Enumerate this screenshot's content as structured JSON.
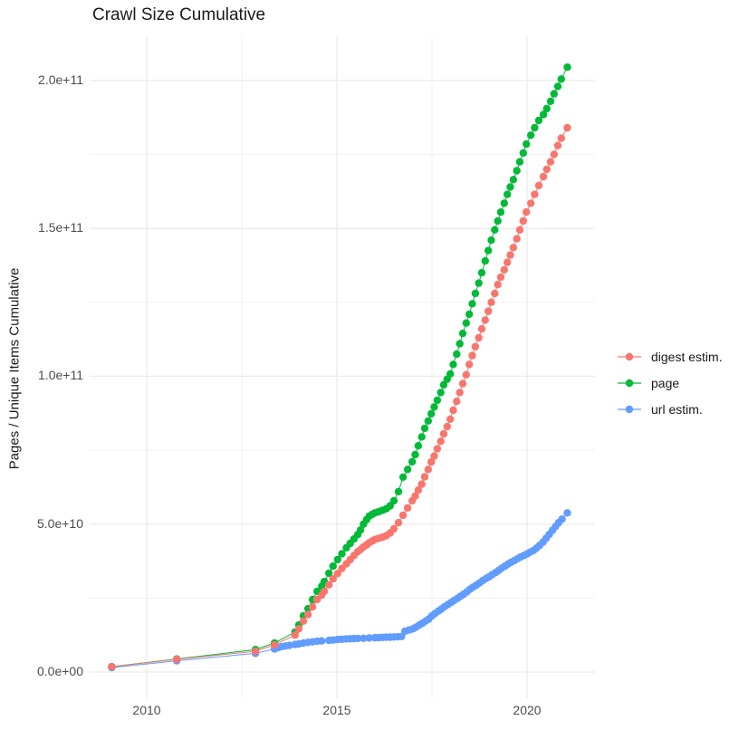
{
  "chart_data": {
    "type": "line",
    "marker": "point",
    "title": "Crawl Size Cumulative",
    "ylabel": "Pages / Unique Items Cumulative",
    "xlabel": "",
    "values_unit": "1e9 (billions of items)",
    "background": "#ffffff",
    "gridline_color": "#EBEBEB",
    "tick_label_color": "#4d4d4d",
    "axes": {
      "x_ticks": {
        "values": [
          2010,
          2015,
          2020
        ],
        "labels": [
          "2010",
          "2015",
          "2020"
        ]
      },
      "x_minor": [
        2012.5,
        2017.5
      ],
      "y_ticks": {
        "values": [
          0,
          50,
          100,
          150,
          200
        ],
        "labels": [
          "0.0e+00",
          "5.0e+10",
          "1.0e+11",
          "1.5e+11",
          "2.0e+11"
        ]
      },
      "y_minor": [
        25,
        75,
        125,
        175
      ],
      "xlim": [
        2008.5,
        2021.8
      ],
      "ylim_e9": [
        -10,
        215
      ],
      "grid": "major and minor gridlines, no axis lines, white panel"
    },
    "legend": {
      "position": "right",
      "entries": [
        "digest estim.",
        "page",
        "url estim."
      ]
    },
    "series": [
      {
        "name": "digest estim.",
        "color": "#F8766D",
        "points": [
          [
            2009.08,
            1.8
          ],
          [
            2010.79,
            4.3
          ],
          [
            2012.86,
            7.0
          ],
          [
            2013.36,
            9.2
          ],
          [
            2013.9,
            12.5
          ],
          [
            2014.0,
            14.6
          ],
          [
            2014.12,
            17.2
          ],
          [
            2014.24,
            19.4
          ],
          [
            2014.36,
            22.0
          ],
          [
            2014.48,
            24.5
          ],
          [
            2014.6,
            26.0
          ],
          [
            2014.67,
            27.3
          ],
          [
            2014.79,
            29.5
          ],
          [
            2014.9,
            31.5
          ],
          [
            2015.02,
            33.3
          ],
          [
            2015.13,
            35.0
          ],
          [
            2015.25,
            36.6
          ],
          [
            2015.35,
            38.0
          ],
          [
            2015.45,
            39.4
          ],
          [
            2015.55,
            40.7
          ],
          [
            2015.62,
            41.4
          ],
          [
            2015.7,
            42.3
          ],
          [
            2015.78,
            43.0
          ],
          [
            2015.85,
            43.7
          ],
          [
            2015.93,
            44.3
          ],
          [
            2016.0,
            44.8
          ],
          [
            2016.1,
            45.2
          ],
          [
            2016.2,
            45.6
          ],
          [
            2016.3,
            46.1
          ],
          [
            2016.4,
            47.0
          ],
          [
            2016.5,
            48.4
          ],
          [
            2016.62,
            50.5
          ],
          [
            2016.74,
            53.0
          ],
          [
            2016.86,
            55.5
          ],
          [
            2016.98,
            57.9
          ],
          [
            2017.06,
            59.5
          ],
          [
            2017.14,
            61.5
          ],
          [
            2017.23,
            63.5
          ],
          [
            2017.31,
            66.0
          ],
          [
            2017.4,
            68.5
          ],
          [
            2017.48,
            71.0
          ],
          [
            2017.56,
            73.0
          ],
          [
            2017.64,
            75.5
          ],
          [
            2017.73,
            78.0
          ],
          [
            2017.81,
            80.5
          ],
          [
            2017.9,
            83.0
          ],
          [
            2017.98,
            85.5
          ],
          [
            2018.06,
            88.5
          ],
          [
            2018.15,
            91.5
          ],
          [
            2018.23,
            94.5
          ],
          [
            2018.31,
            97.5
          ],
          [
            2018.4,
            100.5
          ],
          [
            2018.48,
            104.0
          ],
          [
            2018.56,
            107.0
          ],
          [
            2018.64,
            110.0
          ],
          [
            2018.73,
            113.0
          ],
          [
            2018.81,
            116.0
          ],
          [
            2018.9,
            119.0
          ],
          [
            2018.98,
            122.0
          ],
          [
            2019.06,
            125.0
          ],
          [
            2019.15,
            128.0
          ],
          [
            2019.23,
            131.0
          ],
          [
            2019.31,
            133.5
          ],
          [
            2019.4,
            136.0
          ],
          [
            2019.48,
            138.5
          ],
          [
            2019.56,
            141.0
          ],
          [
            2019.64,
            143.5
          ],
          [
            2019.73,
            146.5
          ],
          [
            2019.81,
            149.5
          ],
          [
            2019.9,
            152.5
          ],
          [
            2019.98,
            155.5
          ],
          [
            2020.1,
            158.5
          ],
          [
            2020.2,
            161.5
          ],
          [
            2020.31,
            164.5
          ],
          [
            2020.43,
            167.5
          ],
          [
            2020.52,
            170.0
          ],
          [
            2020.62,
            172.5
          ],
          [
            2020.71,
            175.0
          ],
          [
            2020.81,
            178.0
          ],
          [
            2020.9,
            180.5
          ],
          [
            2021.06,
            184.0
          ]
        ]
      },
      {
        "name": "page",
        "color": "#00BA38",
        "points": [
          [
            2009.08,
            1.8
          ],
          [
            2010.79,
            4.4
          ],
          [
            2012.86,
            7.6
          ],
          [
            2013.36,
            9.8
          ],
          [
            2013.9,
            13.5
          ],
          [
            2014.0,
            15.9
          ],
          [
            2014.12,
            19.0
          ],
          [
            2014.24,
            21.4
          ],
          [
            2014.36,
            24.5
          ],
          [
            2014.48,
            27.3
          ],
          [
            2014.6,
            29.0
          ],
          [
            2014.67,
            30.6
          ],
          [
            2014.79,
            33.4
          ],
          [
            2014.9,
            35.8
          ],
          [
            2015.02,
            38.0
          ],
          [
            2015.13,
            40.0
          ],
          [
            2015.25,
            42.0
          ],
          [
            2015.35,
            43.5
          ],
          [
            2015.45,
            45.0
          ],
          [
            2015.55,
            46.5
          ],
          [
            2015.62,
            48.0
          ],
          [
            2015.7,
            50.0
          ],
          [
            2015.78,
            51.5
          ],
          [
            2015.85,
            52.7
          ],
          [
            2015.93,
            53.3
          ],
          [
            2016.0,
            53.8
          ],
          [
            2016.1,
            54.2
          ],
          [
            2016.2,
            54.7
          ],
          [
            2016.3,
            55.2
          ],
          [
            2016.4,
            56.2
          ],
          [
            2016.5,
            57.9
          ],
          [
            2016.62,
            61.0
          ],
          [
            2016.74,
            65.9
          ],
          [
            2016.86,
            68.5
          ],
          [
            2016.98,
            71.1
          ],
          [
            2017.06,
            73.5
          ],
          [
            2017.14,
            76.5
          ],
          [
            2017.23,
            79.5
          ],
          [
            2017.31,
            82.4
          ],
          [
            2017.4,
            84.9
          ],
          [
            2017.48,
            87.3
          ],
          [
            2017.56,
            89.6
          ],
          [
            2017.64,
            91.9
          ],
          [
            2017.73,
            94.5
          ],
          [
            2017.81,
            97.1
          ],
          [
            2017.9,
            99.0
          ],
          [
            2017.98,
            100.8
          ],
          [
            2018.06,
            104.0
          ],
          [
            2018.15,
            107.5
          ],
          [
            2018.23,
            111.0
          ],
          [
            2018.31,
            114.5
          ],
          [
            2018.4,
            118.0
          ],
          [
            2018.48,
            121.0
          ],
          [
            2018.56,
            124.5
          ],
          [
            2018.64,
            128.0
          ],
          [
            2018.73,
            131.5
          ],
          [
            2018.81,
            135.0
          ],
          [
            2018.9,
            139.0
          ],
          [
            2018.98,
            142.5
          ],
          [
            2019.06,
            146.0
          ],
          [
            2019.15,
            149.5
          ],
          [
            2019.23,
            152.5
          ],
          [
            2019.31,
            155.5
          ],
          [
            2019.4,
            158.5
          ],
          [
            2019.48,
            161.5
          ],
          [
            2019.56,
            164.0
          ],
          [
            2019.64,
            166.5
          ],
          [
            2019.73,
            169.5
          ],
          [
            2019.81,
            172.5
          ],
          [
            2019.9,
            175.5
          ],
          [
            2019.98,
            178.5
          ],
          [
            2020.1,
            181.5
          ],
          [
            2020.2,
            184.0
          ],
          [
            2020.31,
            186.5
          ],
          [
            2020.43,
            188.5
          ],
          [
            2020.52,
            190.5
          ],
          [
            2020.62,
            193.0
          ],
          [
            2020.71,
            195.5
          ],
          [
            2020.81,
            198.0
          ],
          [
            2020.9,
            200.5
          ],
          [
            2021.06,
            204.5
          ]
        ]
      },
      {
        "name": "url estim.",
        "color": "#619CFF",
        "points": [
          [
            2009.08,
            1.5
          ],
          [
            2010.79,
            3.8
          ],
          [
            2012.86,
            6.3
          ],
          [
            2013.36,
            7.8
          ],
          [
            2013.45,
            8.2
          ],
          [
            2013.55,
            8.6
          ],
          [
            2013.65,
            8.8
          ],
          [
            2013.75,
            9.0
          ],
          [
            2013.9,
            9.3
          ],
          [
            2014.0,
            9.5
          ],
          [
            2014.12,
            9.8
          ],
          [
            2014.24,
            10.0
          ],
          [
            2014.36,
            10.2
          ],
          [
            2014.48,
            10.4
          ],
          [
            2014.6,
            10.5
          ],
          [
            2014.79,
            10.7
          ],
          [
            2014.9,
            10.8
          ],
          [
            2015.02,
            11.0
          ],
          [
            2015.13,
            11.1
          ],
          [
            2015.25,
            11.2
          ],
          [
            2015.35,
            11.25
          ],
          [
            2015.45,
            11.3
          ],
          [
            2015.55,
            11.35
          ],
          [
            2015.7,
            11.4
          ],
          [
            2015.85,
            11.5
          ],
          [
            2016.0,
            11.6
          ],
          [
            2016.1,
            11.65
          ],
          [
            2016.2,
            11.7
          ],
          [
            2016.3,
            11.75
          ],
          [
            2016.4,
            11.8
          ],
          [
            2016.5,
            11.85
          ],
          [
            2016.6,
            11.9
          ],
          [
            2016.7,
            12.0
          ],
          [
            2016.79,
            13.8
          ],
          [
            2016.9,
            14.2
          ],
          [
            2017.0,
            14.6
          ],
          [
            2017.08,
            15.2
          ],
          [
            2017.17,
            15.9
          ],
          [
            2017.25,
            16.5
          ],
          [
            2017.33,
            17.2
          ],
          [
            2017.42,
            17.9
          ],
          [
            2017.5,
            19.0
          ],
          [
            2017.58,
            19.8
          ],
          [
            2017.67,
            20.6
          ],
          [
            2017.75,
            21.3
          ],
          [
            2017.83,
            22.1
          ],
          [
            2017.92,
            22.8
          ],
          [
            2018.0,
            23.5
          ],
          [
            2018.08,
            24.2
          ],
          [
            2018.17,
            24.9
          ],
          [
            2018.25,
            25.6
          ],
          [
            2018.33,
            26.3
          ],
          [
            2018.42,
            27.1
          ],
          [
            2018.5,
            28.0
          ],
          [
            2018.58,
            28.7
          ],
          [
            2018.67,
            29.4
          ],
          [
            2018.75,
            30.1
          ],
          [
            2018.83,
            30.9
          ],
          [
            2018.92,
            31.6
          ],
          [
            2019.0,
            32.2
          ],
          [
            2019.08,
            32.9
          ],
          [
            2019.17,
            33.6
          ],
          [
            2019.25,
            34.3
          ],
          [
            2019.33,
            35.1
          ],
          [
            2019.42,
            35.8
          ],
          [
            2019.5,
            36.5
          ],
          [
            2019.58,
            37.1
          ],
          [
            2019.67,
            37.7
          ],
          [
            2019.75,
            38.3
          ],
          [
            2019.83,
            38.9
          ],
          [
            2019.92,
            39.4
          ],
          [
            2020.0,
            39.9
          ],
          [
            2020.08,
            40.5
          ],
          [
            2020.17,
            41.1
          ],
          [
            2020.25,
            41.9
          ],
          [
            2020.33,
            42.8
          ],
          [
            2020.42,
            43.9
          ],
          [
            2020.5,
            45.2
          ],
          [
            2020.58,
            46.5
          ],
          [
            2020.67,
            47.9
          ],
          [
            2020.75,
            49.2
          ],
          [
            2020.83,
            50.5
          ],
          [
            2020.92,
            51.7
          ],
          [
            2021.06,
            53.8
          ]
        ]
      }
    ]
  }
}
